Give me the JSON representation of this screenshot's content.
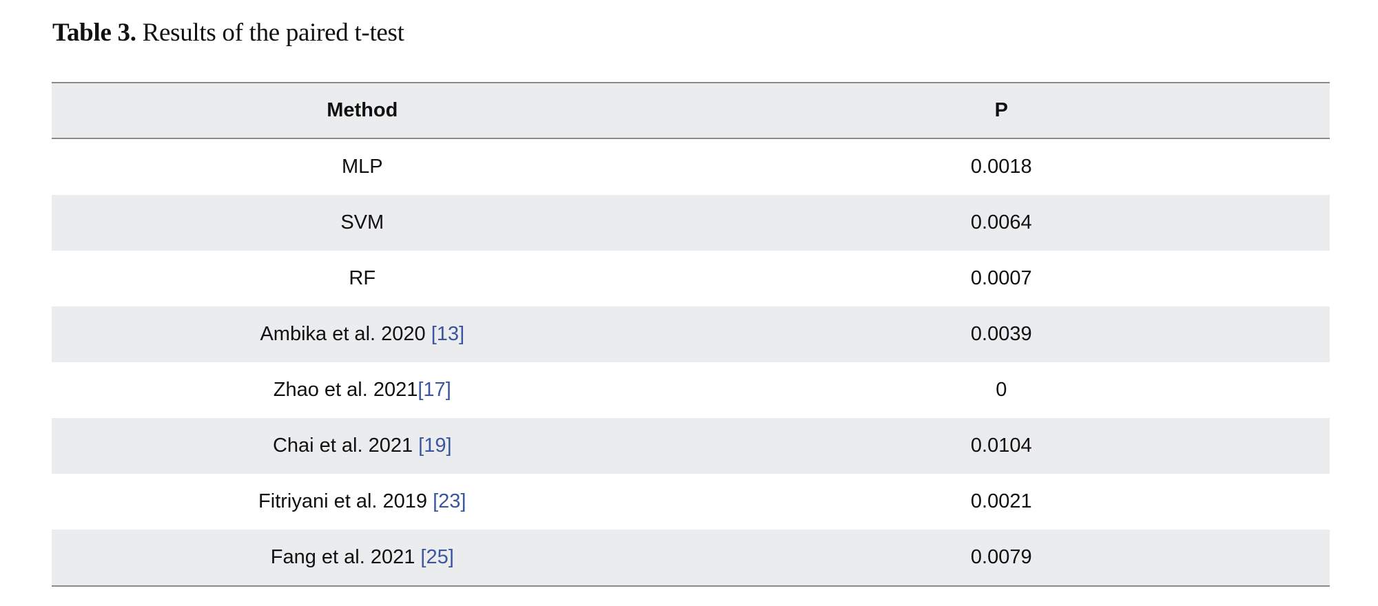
{
  "caption": {
    "label": "Table 3.",
    "text": " Results of the paired t-test"
  },
  "table": {
    "headers": [
      "Method",
      "P"
    ],
    "rows": [
      {
        "method": "MLP",
        "ref": "",
        "sep": "",
        "p": "0.0018"
      },
      {
        "method": "SVM",
        "ref": "",
        "sep": "",
        "p": "0.0064"
      },
      {
        "method": "RF",
        "ref": "",
        "sep": "",
        "p": "0.0007"
      },
      {
        "method": "Ambika et al. 2020",
        "sep": " ",
        "ref": "[13]",
        "p": "0.0039"
      },
      {
        "method": "Zhao et al. 2021",
        "sep": "",
        "ref": "[17]",
        "p": "0"
      },
      {
        "method": "Chai et al. 2021",
        "sep": " ",
        "ref": "[19]",
        "p": "0.0104"
      },
      {
        "method": "Fitriyani et al. 2019",
        "sep": " ",
        "ref": "[23]",
        "p": "0.0021"
      },
      {
        "method": "Fang et al. 2021",
        "sep": " ",
        "ref": "[25]",
        "p": "0.0079"
      }
    ]
  },
  "colors": {
    "reference_link": "#3b55a0",
    "stripe": "#ebecee",
    "rule": "#8a8a8a"
  }
}
